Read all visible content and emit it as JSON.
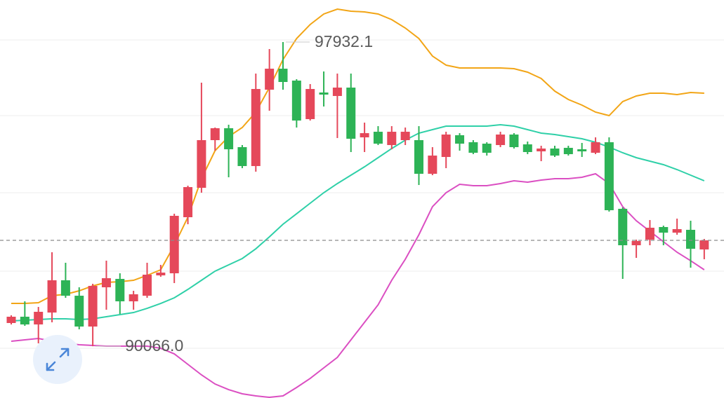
{
  "chart_data": {
    "type": "candlestick",
    "categories": [
      null,
      null,
      null,
      null,
      null,
      null,
      null,
      null,
      null,
      null,
      null,
      null,
      null,
      null,
      null,
      null,
      null,
      null,
      null,
      null,
      null,
      null,
      null,
      null,
      null,
      null,
      null,
      null,
      null,
      null,
      null,
      null,
      null,
      null,
      null,
      null,
      null,
      null,
      null,
      null,
      null,
      null,
      null,
      null,
      null,
      null,
      null,
      null,
      null,
      null,
      null,
      null
    ],
    "open": [
      90666,
      90829,
      90629,
      90937,
      91771,
      91372,
      90575,
      91590,
      91807,
      91227,
      91372,
      91898,
      91952,
      93402,
      94163,
      95395,
      95703,
      95214,
      94725,
      96700,
      97243,
      96935,
      95939,
      96627,
      96537,
      96754,
      95467,
      95612,
      95268,
      95395,
      95395,
      94525,
      94960,
      95522,
      95341,
      95304,
      95268,
      95540,
      95286,
      95105,
      95178,
      95196,
      95159,
      95069,
      95341,
      93619,
      92677,
      92822,
      93148,
      93003,
      93076,
      92568
    ],
    "high": [
      90865,
      91227,
      91082,
      92496,
      92224,
      91590,
      91680,
      92278,
      91952,
      91499,
      92224,
      92170,
      93492,
      94217,
      96881,
      95721,
      95794,
      95268,
      97116,
      97751,
      97932.1,
      96971,
      96845,
      97171,
      97116,
      97116,
      95848,
      95757,
      95757,
      95721,
      95757,
      95214,
      95612,
      95576,
      95395,
      95341,
      95612,
      95576,
      95359,
      95250,
      95250,
      95250,
      95323,
      95467,
      95467,
      93655,
      92822,
      93329,
      93184,
      93366,
      93311,
      92840
    ],
    "low": [
      90629,
      90593,
      90140,
      90684,
      91318,
      90503,
      90066,
      91010,
      90901,
      91010,
      91318,
      91862,
      91699,
      93221,
      94036,
      95123,
      94435,
      94670,
      94580,
      96156,
      96700,
      95721,
      95902,
      96265,
      95449,
      95087,
      95087,
      95268,
      95159,
      95268,
      94235,
      94489,
      94670,
      95123,
      95033,
      94996,
      95214,
      95178,
      95033,
      94851,
      94960,
      94996,
      94960,
      95033,
      93547,
      91807,
      92351,
      92677,
      92677,
      92949,
      92097,
      92315
    ],
    "close": [
      90829,
      90629,
      90956,
      91771,
      91372,
      90575,
      91626,
      91825,
      91227,
      91409,
      91916,
      91970,
      93438,
      94181,
      95395,
      95703,
      95159,
      94725,
      96718,
      97243,
      96899,
      95902,
      96718,
      96573,
      96754,
      95431,
      95576,
      95304,
      95612,
      95612,
      94525,
      94996,
      95540,
      95304,
      95069,
      95069,
      95540,
      95214,
      95087,
      95178,
      94996,
      95033,
      95105,
      95341,
      93583,
      92677,
      92786,
      93130,
      93003,
      93094,
      92586,
      92804
    ],
    "up_color": "#e5485a",
    "down_color": "#2db356",
    "lines": [
      {
        "color": "#f2a516",
        "values": [
          91173,
          91173,
          91191,
          91372,
          91409,
          91499,
          91626,
          91717,
          91735,
          91771,
          91898,
          92043,
          92677,
          93402,
          94398,
          95123,
          95486,
          95721,
          96120,
          96754,
          97479,
          98022,
          98385,
          98657,
          98783,
          98729,
          98711,
          98657,
          98512,
          98294,
          98022,
          97569,
          97334,
          97261,
          97261,
          97261,
          97261,
          97243,
          97153,
          96990,
          96663,
          96446,
          96301,
          96120,
          96029,
          96392,
          96537,
          96609,
          96609,
          96573,
          96627,
          96609
        ]
      },
      {
        "color": "#2fd0a8",
        "values": [
          90720,
          90738,
          90756,
          90774,
          90774,
          90756,
          90774,
          90829,
          90883,
          90937,
          91046,
          91173,
          91318,
          91535,
          91771,
          92007,
          92170,
          92333,
          92586,
          92894,
          93221,
          93492,
          93764,
          94036,
          94272,
          94489,
          94706,
          94942,
          95178,
          95395,
          95576,
          95667,
          95757,
          95757,
          95757,
          95757,
          95794,
          95757,
          95667,
          95576,
          95540,
          95486,
          95431,
          95341,
          95214,
          95069,
          94942,
          94851,
          94761,
          94634,
          94489,
          94344
        ]
      },
      {
        "color": "#db4fc2",
        "values": [
          90195,
          90231,
          90267,
          90195,
          90140,
          90104,
          90086,
          90068,
          90068,
          90068,
          90068,
          90013,
          89868,
          89597,
          89325,
          89089,
          88944,
          88836,
          88781,
          88745,
          88781,
          88999,
          89234,
          89506,
          89778,
          90231,
          90684,
          91137,
          91771,
          92315,
          92949,
          93674,
          94036,
          94253,
          94217,
          94217,
          94272,
          94344,
          94308,
          94362,
          94398,
          94398,
          94435,
          94525,
          94272,
          93674,
          93311,
          93039,
          92768,
          92496,
          92278,
          92043
        ]
      }
    ],
    "max_label": 97932.1,
    "min_label": {
      "value": 90066,
      "label": "90066.0"
    },
    "ylim": [
      88727,
      99019
    ]
  }
}
